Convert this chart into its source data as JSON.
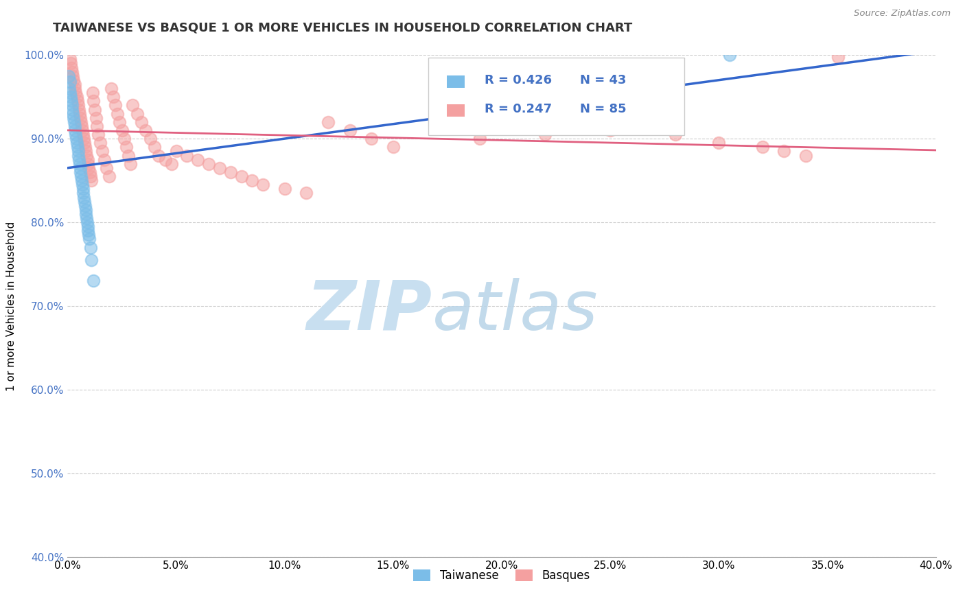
{
  "title": "TAIWANESE VS BASQUE 1 OR MORE VEHICLES IN HOUSEHOLD CORRELATION CHART",
  "source": "Source: ZipAtlas.com",
  "ylabel": "1 or more Vehicles in Household",
  "xlim": [
    0.0,
    40.0
  ],
  "ylim": [
    40.0,
    100.0
  ],
  "xticks": [
    0.0,
    5.0,
    10.0,
    15.0,
    20.0,
    25.0,
    30.0,
    35.0,
    40.0
  ],
  "yticks": [
    40.0,
    50.0,
    60.0,
    70.0,
    80.0,
    90.0,
    100.0
  ],
  "taiwanese_R": 0.426,
  "taiwanese_N": 43,
  "basque_R": 0.247,
  "basque_N": 85,
  "taiwanese_color": "#7bbde8",
  "basque_color": "#f4a0a0",
  "trendline_taiwanese_color": "#3366cc",
  "trendline_basque_color": "#e06080",
  "legend_color": "#4472c4",
  "watermark_zip": "ZIP",
  "watermark_atlas": "atlas",
  "watermark_color": "#c8dff0",
  "tw_x": [
    0.05,
    0.08,
    0.1,
    0.12,
    0.15,
    0.18,
    0.2,
    0.22,
    0.25,
    0.28,
    0.3,
    0.33,
    0.35,
    0.38,
    0.4,
    0.42,
    0.45,
    0.48,
    0.5,
    0.52,
    0.55,
    0.58,
    0.6,
    0.62,
    0.65,
    0.68,
    0.7,
    0.72,
    0.75,
    0.78,
    0.8,
    0.83,
    0.85,
    0.88,
    0.9,
    0.92,
    0.95,
    0.98,
    1.0,
    1.05,
    1.1,
    1.2,
    30.5
  ],
  "tw_y": [
    97.5,
    96.0,
    95.5,
    96.8,
    95.0,
    94.5,
    94.0,
    93.5,
    93.0,
    92.5,
    92.0,
    91.5,
    91.0,
    90.5,
    90.0,
    89.5,
    89.0,
    88.5,
    88.0,
    87.5,
    87.0,
    86.5,
    86.0,
    85.5,
    85.0,
    84.5,
    84.0,
    83.5,
    83.0,
    82.5,
    82.0,
    81.5,
    81.0,
    80.5,
    80.0,
    79.5,
    79.0,
    78.5,
    78.0,
    77.0,
    75.5,
    73.0,
    100.0
  ],
  "bq_x": [
    0.1,
    0.15,
    0.18,
    0.22,
    0.25,
    0.28,
    0.32,
    0.35,
    0.38,
    0.42,
    0.45,
    0.48,
    0.52,
    0.55,
    0.58,
    0.62,
    0.65,
    0.68,
    0.72,
    0.75,
    0.78,
    0.82,
    0.85,
    0.88,
    0.92,
    0.95,
    0.98,
    1.02,
    1.05,
    1.1,
    1.15,
    1.2,
    1.25,
    1.3,
    1.35,
    1.4,
    1.5,
    1.6,
    1.7,
    1.8,
    1.9,
    2.0,
    2.1,
    2.2,
    2.3,
    2.4,
    2.5,
    2.6,
    2.7,
    2.8,
    2.9,
    3.0,
    3.2,
    3.4,
    3.6,
    3.8,
    4.0,
    4.2,
    4.5,
    4.8,
    5.0,
    5.5,
    6.0,
    6.5,
    7.0,
    7.5,
    8.0,
    8.5,
    9.0,
    10.0,
    11.0,
    12.0,
    13.0,
    14.0,
    15.0,
    17.0,
    19.0,
    22.0,
    25.0,
    28.0,
    30.0,
    32.0,
    33.0,
    34.0,
    35.5
  ],
  "bq_y": [
    99.5,
    99.0,
    98.5,
    98.0,
    97.5,
    97.0,
    96.5,
    96.0,
    95.5,
    95.0,
    94.5,
    94.0,
    93.5,
    93.0,
    92.5,
    92.0,
    91.5,
    91.0,
    90.5,
    90.0,
    89.5,
    89.0,
    88.5,
    88.0,
    87.5,
    87.0,
    86.5,
    86.0,
    85.5,
    85.0,
    95.5,
    94.5,
    93.5,
    92.5,
    91.5,
    90.5,
    89.5,
    88.5,
    87.5,
    86.5,
    85.5,
    96.0,
    95.0,
    94.0,
    93.0,
    92.0,
    91.0,
    90.0,
    89.0,
    88.0,
    87.0,
    94.0,
    93.0,
    92.0,
    91.0,
    90.0,
    89.0,
    88.0,
    87.5,
    87.0,
    88.5,
    88.0,
    87.5,
    87.0,
    86.5,
    86.0,
    85.5,
    85.0,
    84.5,
    84.0,
    83.5,
    92.0,
    91.0,
    90.0,
    89.0,
    91.5,
    90.0,
    90.5,
    91.0,
    90.5,
    89.5,
    89.0,
    88.5,
    88.0,
    99.8
  ]
}
